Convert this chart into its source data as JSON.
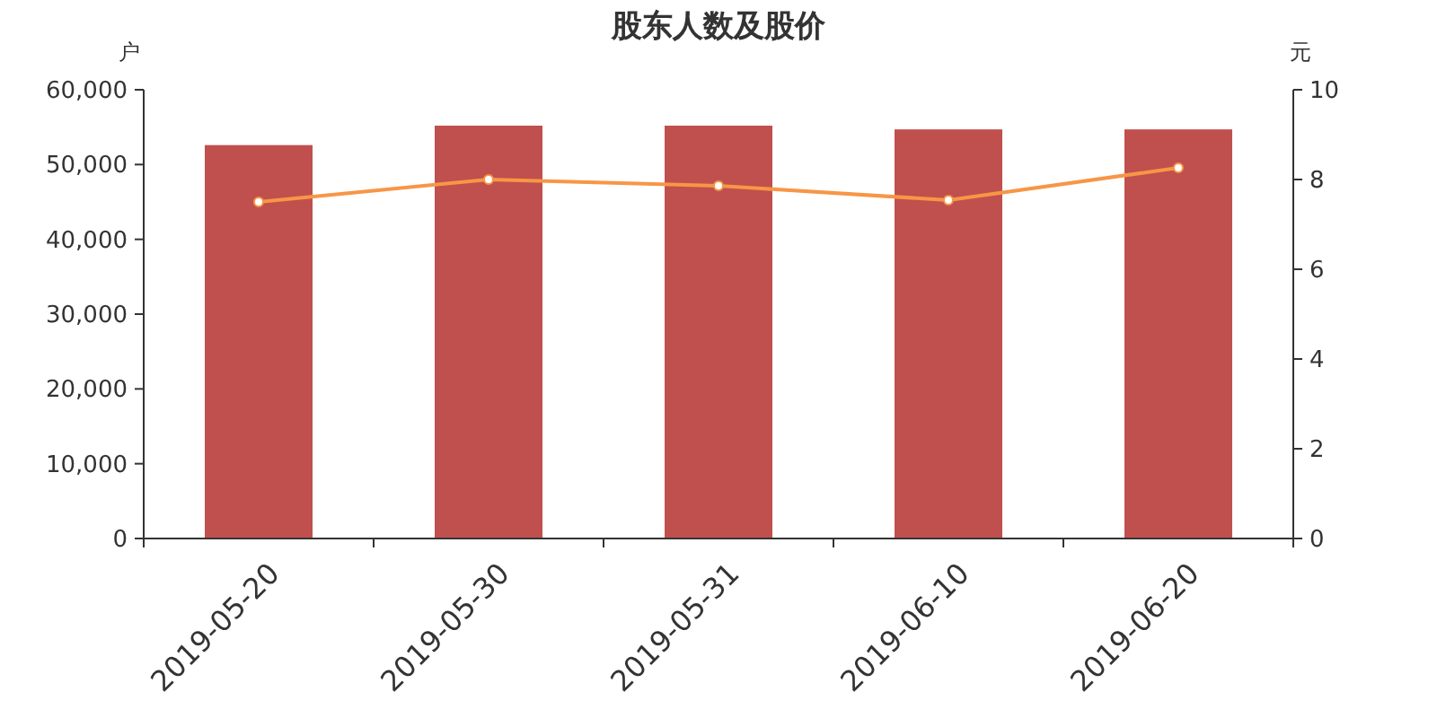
{
  "chart_data": {
    "type": "bar",
    "title": "股东人数及股价",
    "ylabel": "户",
    "y2label": "元",
    "categories": [
      "2019-05-20",
      "2019-05-30",
      "2019-05-31",
      "2019-06-10",
      "2019-06-20"
    ],
    "series": [
      {
        "color": "#c0504d",
        "values": [
          52600,
          55200,
          55200,
          54700,
          54700
        ]
      },
      {
        "type": "line",
        "axis": "y2",
        "color": "#f79646",
        "marker": "circle",
        "values": [
          7.5,
          8.0,
          7.86,
          7.54,
          8.26
        ]
      }
    ],
    "ylim": [
      0,
      60000
    ],
    "yticks": [
      0,
      {
        "value": 10000,
        "label": "10,000"
      },
      {
        "value": 20000,
        "label": "20,000"
      },
      {
        "value": 30000,
        "label": "30,000"
      },
      {
        "value": 40000,
        "label": "40,000"
      },
      {
        "value": 50000,
        "label": "50,000"
      },
      {
        "value": 60000,
        "label": "60,000"
      }
    ],
    "y2lim": [
      0,
      10
    ],
    "y2ticks": [
      0,
      2,
      4,
      6,
      8,
      10
    ],
    "grid": false
  }
}
